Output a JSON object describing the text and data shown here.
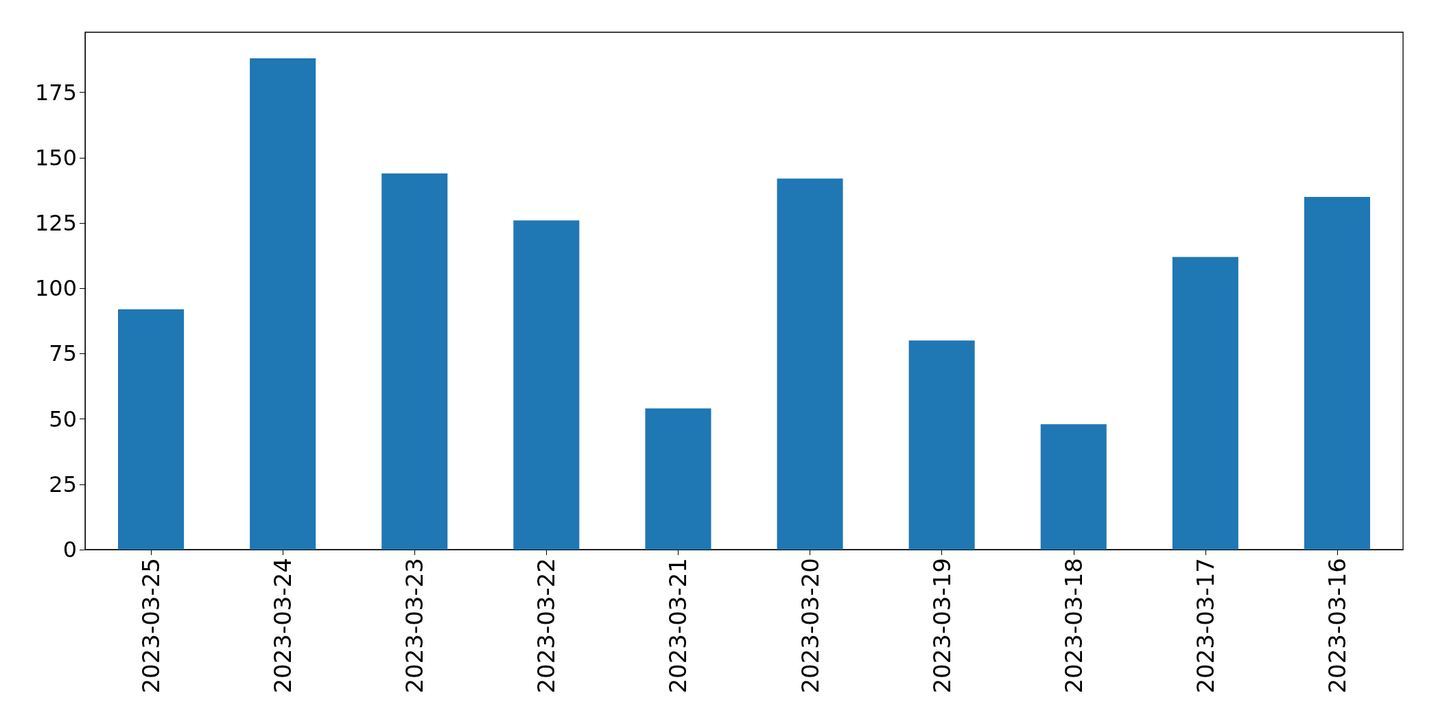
{
  "chart_data": {
    "type": "bar",
    "categories": [
      "2023-03-25",
      "2023-03-24",
      "2023-03-23",
      "2023-03-22",
      "2023-03-21",
      "2023-03-20",
      "2023-03-19",
      "2023-03-18",
      "2023-03-17",
      "2023-03-16"
    ],
    "values": [
      92,
      188,
      144,
      126,
      54,
      142,
      80,
      48,
      112,
      135
    ],
    "color": "#1f77b4",
    "ylim": [
      0,
      198
    ],
    "yticks": [
      0,
      25,
      50,
      75,
      100,
      125,
      150,
      175
    ],
    "grid": false
  }
}
